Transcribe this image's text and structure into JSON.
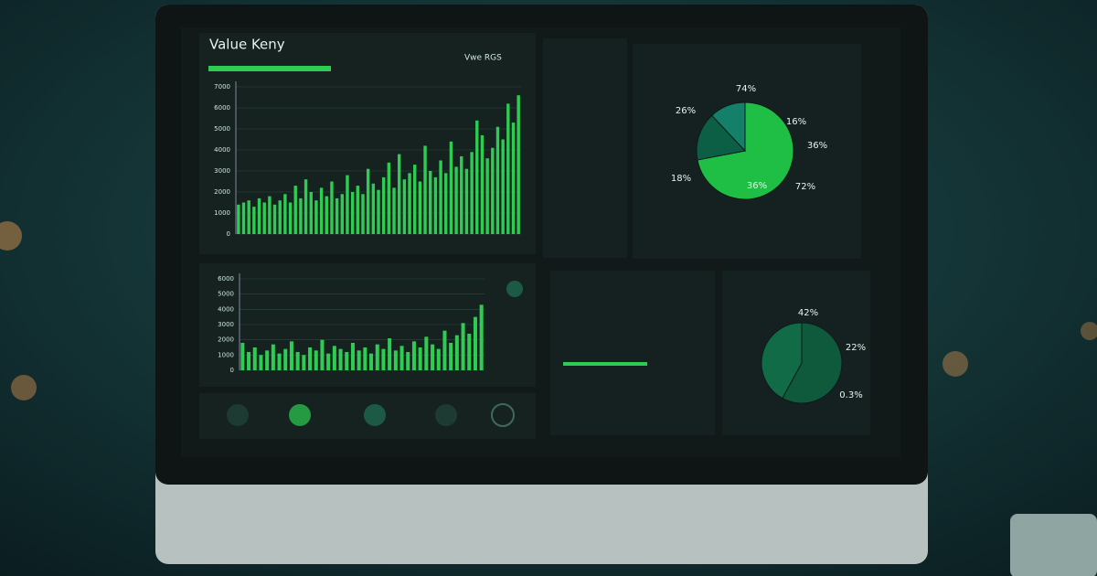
{
  "header": {
    "title": "Value Keny",
    "subtitle": "Vwe RGS"
  },
  "chart_data": [
    {
      "type": "bar",
      "color": "#2ecc52",
      "values": [
        1400,
        1500,
        1600,
        1300,
        1700,
        1500,
        1800,
        1400,
        1600,
        1900,
        1500,
        2300,
        1700,
        2600,
        2000,
        1600,
        2200,
        1800,
        2500,
        1700,
        1900,
        2800,
        2000,
        2300,
        1900,
        3100,
        2400,
        2100,
        2700,
        3400,
        2200,
        3800,
        2600,
        2900,
        3300,
        2500,
        4200,
        3000,
        2700,
        3500,
        2900,
        4400,
        3200,
        3700,
        3100,
        3900,
        5400,
        4700,
        3600,
        4100,
        5100,
        4500,
        6200,
        5300,
        6600
      ],
      "ylim": [
        0,
        7000
      ],
      "yticks": [
        0,
        1000,
        2000,
        3000,
        4000,
        5000,
        6000,
        7000
      ],
      "grid": true
    },
    {
      "type": "bar",
      "color": "#2ecc52",
      "values": [
        1800,
        1200,
        1500,
        1000,
        1300,
        1700,
        1100,
        1400,
        1900,
        1200,
        1000,
        1500,
        1300,
        2000,
        1100,
        1600,
        1400,
        1200,
        1800,
        1300,
        1500,
        1100,
        1700,
        1400,
        2100,
        1300,
        1600,
        1200,
        1900,
        1500,
        2200,
        1700,
        1400,
        2600,
        1800,
        2300,
        3100,
        2400,
        3500,
        4300
      ],
      "ylim": [
        0,
        6000
      ],
      "yticks": [
        0,
        1000,
        2000,
        3000,
        4000,
        5000,
        6000
      ],
      "grid": true
    },
    {
      "type": "pie",
      "values": [
        72,
        16,
        12
      ],
      "colors": [
        "#1fbf45",
        "#0c5f45",
        "#14806a"
      ],
      "annotations": [
        "74%",
        "26%",
        "16%",
        "36%",
        "18%",
        "36%",
        "72%"
      ]
    },
    {
      "type": "pie",
      "values": [
        58,
        42
      ],
      "colors": [
        "#0f5a3c",
        "#116b46"
      ],
      "annotations": [
        "42%",
        "22%",
        "0.3%"
      ]
    }
  ]
}
